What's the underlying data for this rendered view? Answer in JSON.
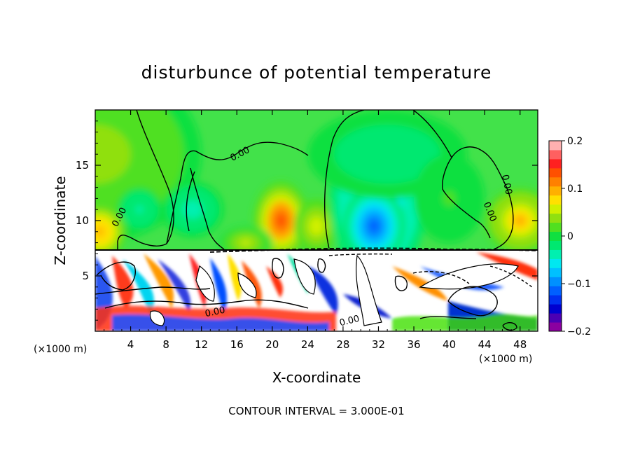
{
  "chart_data": {
    "type": "heatmap",
    "title": "disturbunce of potential temperature",
    "xlabel": "X-coordinate",
    "ylabel": "Z-coordinate",
    "x_unit": "(×1000 m)",
    "y_unit": "(×1000 m)",
    "footer": "CONTOUR INTERVAL = 3.000E-01",
    "xlim": [
      0,
      50
    ],
    "ylim": [
      0,
      20
    ],
    "x_ticks": [
      {
        "value": 4,
        "label": "4"
      },
      {
        "value": 8,
        "label": "8"
      },
      {
        "value": 12,
        "label": "12"
      },
      {
        "value": 16,
        "label": "16"
      },
      {
        "value": 20,
        "label": "20"
      },
      {
        "value": 24,
        "label": "24"
      },
      {
        "value": 28,
        "label": "28"
      },
      {
        "value": 32,
        "label": "32"
      },
      {
        "value": 36,
        "label": "36"
      },
      {
        "value": 40,
        "label": "40"
      },
      {
        "value": 44,
        "label": "44"
      },
      {
        "value": 48,
        "label": "48"
      }
    ],
    "y_ticks": [
      {
        "value": 5,
        "label": "5"
      },
      {
        "value": 10,
        "label": "10"
      },
      {
        "value": 15,
        "label": "15"
      }
    ],
    "colorbar": {
      "range": [
        -0.2,
        0.2
      ],
      "ticks": [
        {
          "value": 0.2,
          "label": "0.2"
        },
        {
          "value": 0.1,
          "label": "0.1"
        },
        {
          "value": 0,
          "label": "0"
        },
        {
          "value": -0.1,
          "label": "−0.1"
        },
        {
          "value": -0.2,
          "label": "−0.2"
        }
      ],
      "colors": [
        "#8b00a0",
        "#4b00b4",
        "#0000d0",
        "#0030f0",
        "#0060ff",
        "#0090ff",
        "#00c0ff",
        "#00e8f0",
        "#00f0b0",
        "#00e870",
        "#10e040",
        "#50e020",
        "#90e010",
        "#d0f000",
        "#ffe000",
        "#ffb000",
        "#ff8000",
        "#ff5000",
        "#ff2020",
        "#ff6060",
        "#ffb0b0"
      ]
    },
    "contour_labels": [
      {
        "text": "0.00",
        "x": 3.0,
        "z": 10.2,
        "angle": -62
      },
      {
        "text": "0.00",
        "x": 16.5,
        "z": 15.8,
        "angle": -28
      },
      {
        "text": "0.00",
        "x": 44.3,
        "z": 10.7,
        "angle": 68
      },
      {
        "text": "0.00",
        "x": 46.2,
        "z": 13.2,
        "angle": 78
      },
      {
        "text": "0.00",
        "x": 13.6,
        "z": 1.5,
        "angle": -12
      },
      {
        "text": "0.00",
        "x": 28.8,
        "z": 0.7,
        "angle": -14
      }
    ],
    "blobs": [
      {
        "x": 0,
        "z": 16,
        "rx": 12,
        "rz": 8,
        "v": 0.04
      },
      {
        "x": 11,
        "z": 11,
        "rx": 3.5,
        "rz": 2.5,
        "v": -0.04
      },
      {
        "x": 5,
        "z": 11,
        "rx": 2.5,
        "rz": 2,
        "v": -0.03
      },
      {
        "x": 21,
        "z": 10,
        "rx": 3.2,
        "rz": 3.6,
        "v": 0.13
      },
      {
        "x": 25,
        "z": 9.5,
        "rx": 2.5,
        "rz": 2.5,
        "v": 0.06
      },
      {
        "x": 32,
        "z": 12,
        "rx": 5.5,
        "rz": 7.5,
        "v": -0.09
      },
      {
        "x": 31.5,
        "z": 9.5,
        "rx": 3.5,
        "rz": 3.5,
        "v": -0.11
      },
      {
        "x": 33,
        "z": 16,
        "rx": 9,
        "rz": 4,
        "v": -0.02
      },
      {
        "x": 48,
        "z": 10,
        "rx": 4,
        "rz": 3,
        "v": 0.09
      },
      {
        "x": 0.5,
        "z": 9,
        "rx": 3,
        "rz": 2.5,
        "v": 0.1
      },
      {
        "x": 40,
        "z": 12,
        "rx": 4,
        "rz": 4,
        "v": 0.01
      },
      {
        "x": 17,
        "z": 8,
        "rx": 3,
        "rz": 1.5,
        "v": 0.05
      }
    ]
  }
}
